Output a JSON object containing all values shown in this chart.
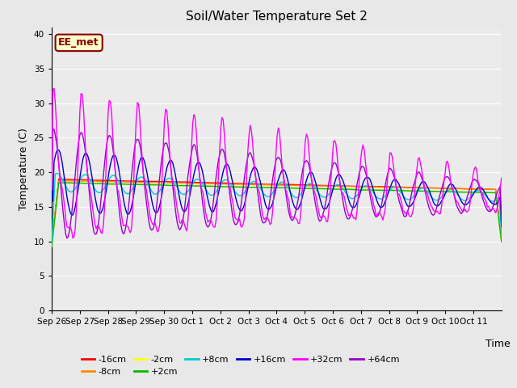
{
  "title": "Soil/Water Temperature Set 2",
  "xlabel": "Time",
  "ylabel": "Temperature (C)",
  "ylim": [
    0,
    41
  ],
  "yticks": [
    0,
    5,
    10,
    15,
    20,
    25,
    30,
    35,
    40
  ],
  "annotation_text": "EE_met",
  "annotation_color": "#8B0000",
  "annotation_bg": "#FFFFCC",
  "bg_color": "#E8E8E8",
  "plot_bg": "#EBEBEB",
  "series_colors": {
    "-16cm": "#FF0000",
    "-8cm": "#FF8C00",
    "-2cm": "#FFFF00",
    "+2cm": "#00BB00",
    "+8cm": "#00CCCC",
    "+16cm": "#0000CC",
    "+32cm": "#FF00FF",
    "+64cm": "#9900CC"
  },
  "num_days": 16,
  "xtick_labels": [
    "Sep 26",
    "Sep 27",
    "Sep 28",
    "Sep 29",
    "Sep 30",
    "Oct 1",
    "Oct 2",
    "Oct 3",
    "Oct 4",
    "Oct 5",
    "Oct 6",
    "Oct 7",
    "Oct 8",
    "Oct 9",
    "Oct 10",
    "Oct 11"
  ],
  "base_temp": 18.5,
  "figsize": [
    6.4,
    4.8
  ],
  "dpi": 100
}
